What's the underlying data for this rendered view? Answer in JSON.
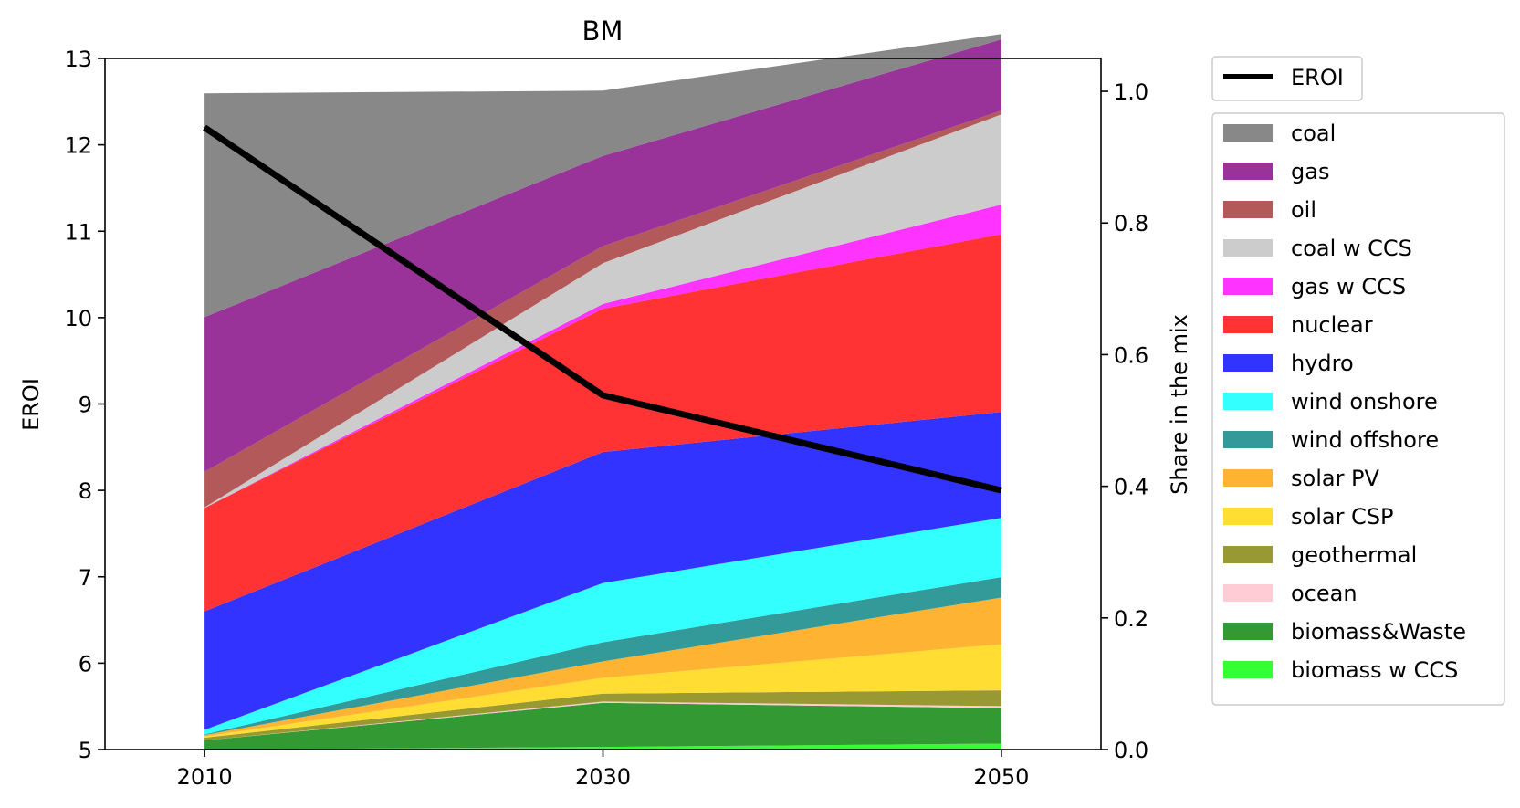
{
  "chart_data": {
    "type": "area",
    "title": "BM",
    "x": [
      2010,
      2030,
      2050
    ],
    "x_ticks": [
      "2010",
      "2030",
      "2050"
    ],
    "ylabel_left": "EROI",
    "ylim_left": [
      5,
      13
    ],
    "yticks_left": [
      "5",
      "6",
      "7",
      "8",
      "9",
      "10",
      "11",
      "12",
      "13"
    ],
    "ylabel_right": "Share in the mix",
    "ylim_right": [
      0,
      1.05
    ],
    "yticks_right": [
      "0.0",
      "0.2",
      "0.4",
      "0.6",
      "0.8",
      "1.0"
    ],
    "grid": false,
    "legend_placement": "outside-right",
    "line_series": {
      "name": "EROI",
      "color": "#000000",
      "values": [
        12.2,
        9.1,
        8.0
      ]
    },
    "stacked_series": [
      {
        "name": "biomass w CCS",
        "color": "#33ff33",
        "values": [
          0.0,
          0.004,
          0.009
        ]
      },
      {
        "name": "biomass&Waste",
        "color": "#339933",
        "values": [
          0.014,
          0.067,
          0.054
        ]
      },
      {
        "name": "ocean",
        "color": "#ffccd5",
        "values": [
          0.0,
          0.002,
          0.003
        ]
      },
      {
        "name": "geothermal",
        "color": "#999933",
        "values": [
          0.004,
          0.012,
          0.024
        ]
      },
      {
        "name": "solar CSP",
        "color": "#ffdd33",
        "values": [
          0.002,
          0.024,
          0.07
        ]
      },
      {
        "name": "solar PV",
        "color": "#ffb333",
        "values": [
          0.002,
          0.025,
          0.071
        ]
      },
      {
        "name": "wind offshore",
        "color": "#339999",
        "values": [
          0.001,
          0.029,
          0.031
        ]
      },
      {
        "name": "wind onshore",
        "color": "#33ffff",
        "values": [
          0.007,
          0.09,
          0.09
        ]
      },
      {
        "name": "hydro",
        "color": "#3333ff",
        "values": [
          0.18,
          0.199,
          0.161
        ]
      },
      {
        "name": "nuclear",
        "color": "#ff3333",
        "values": [
          0.157,
          0.218,
          0.27
        ]
      },
      {
        "name": "gas w CCS",
        "color": "#ff33ff",
        "values": [
          0.0,
          0.007,
          0.045
        ]
      },
      {
        "name": "coal w CCS",
        "color": "#cccccc",
        "values": [
          0.001,
          0.062,
          0.137
        ]
      },
      {
        "name": "oil",
        "color": "#b35959",
        "values": [
          0.054,
          0.026,
          0.006
        ]
      },
      {
        "name": "gas",
        "color": "#993399",
        "values": [
          0.235,
          0.137,
          0.108
        ]
      },
      {
        "name": "coal",
        "color": "#888888",
        "values": [
          0.34,
          0.099,
          0.008
        ]
      }
    ]
  }
}
